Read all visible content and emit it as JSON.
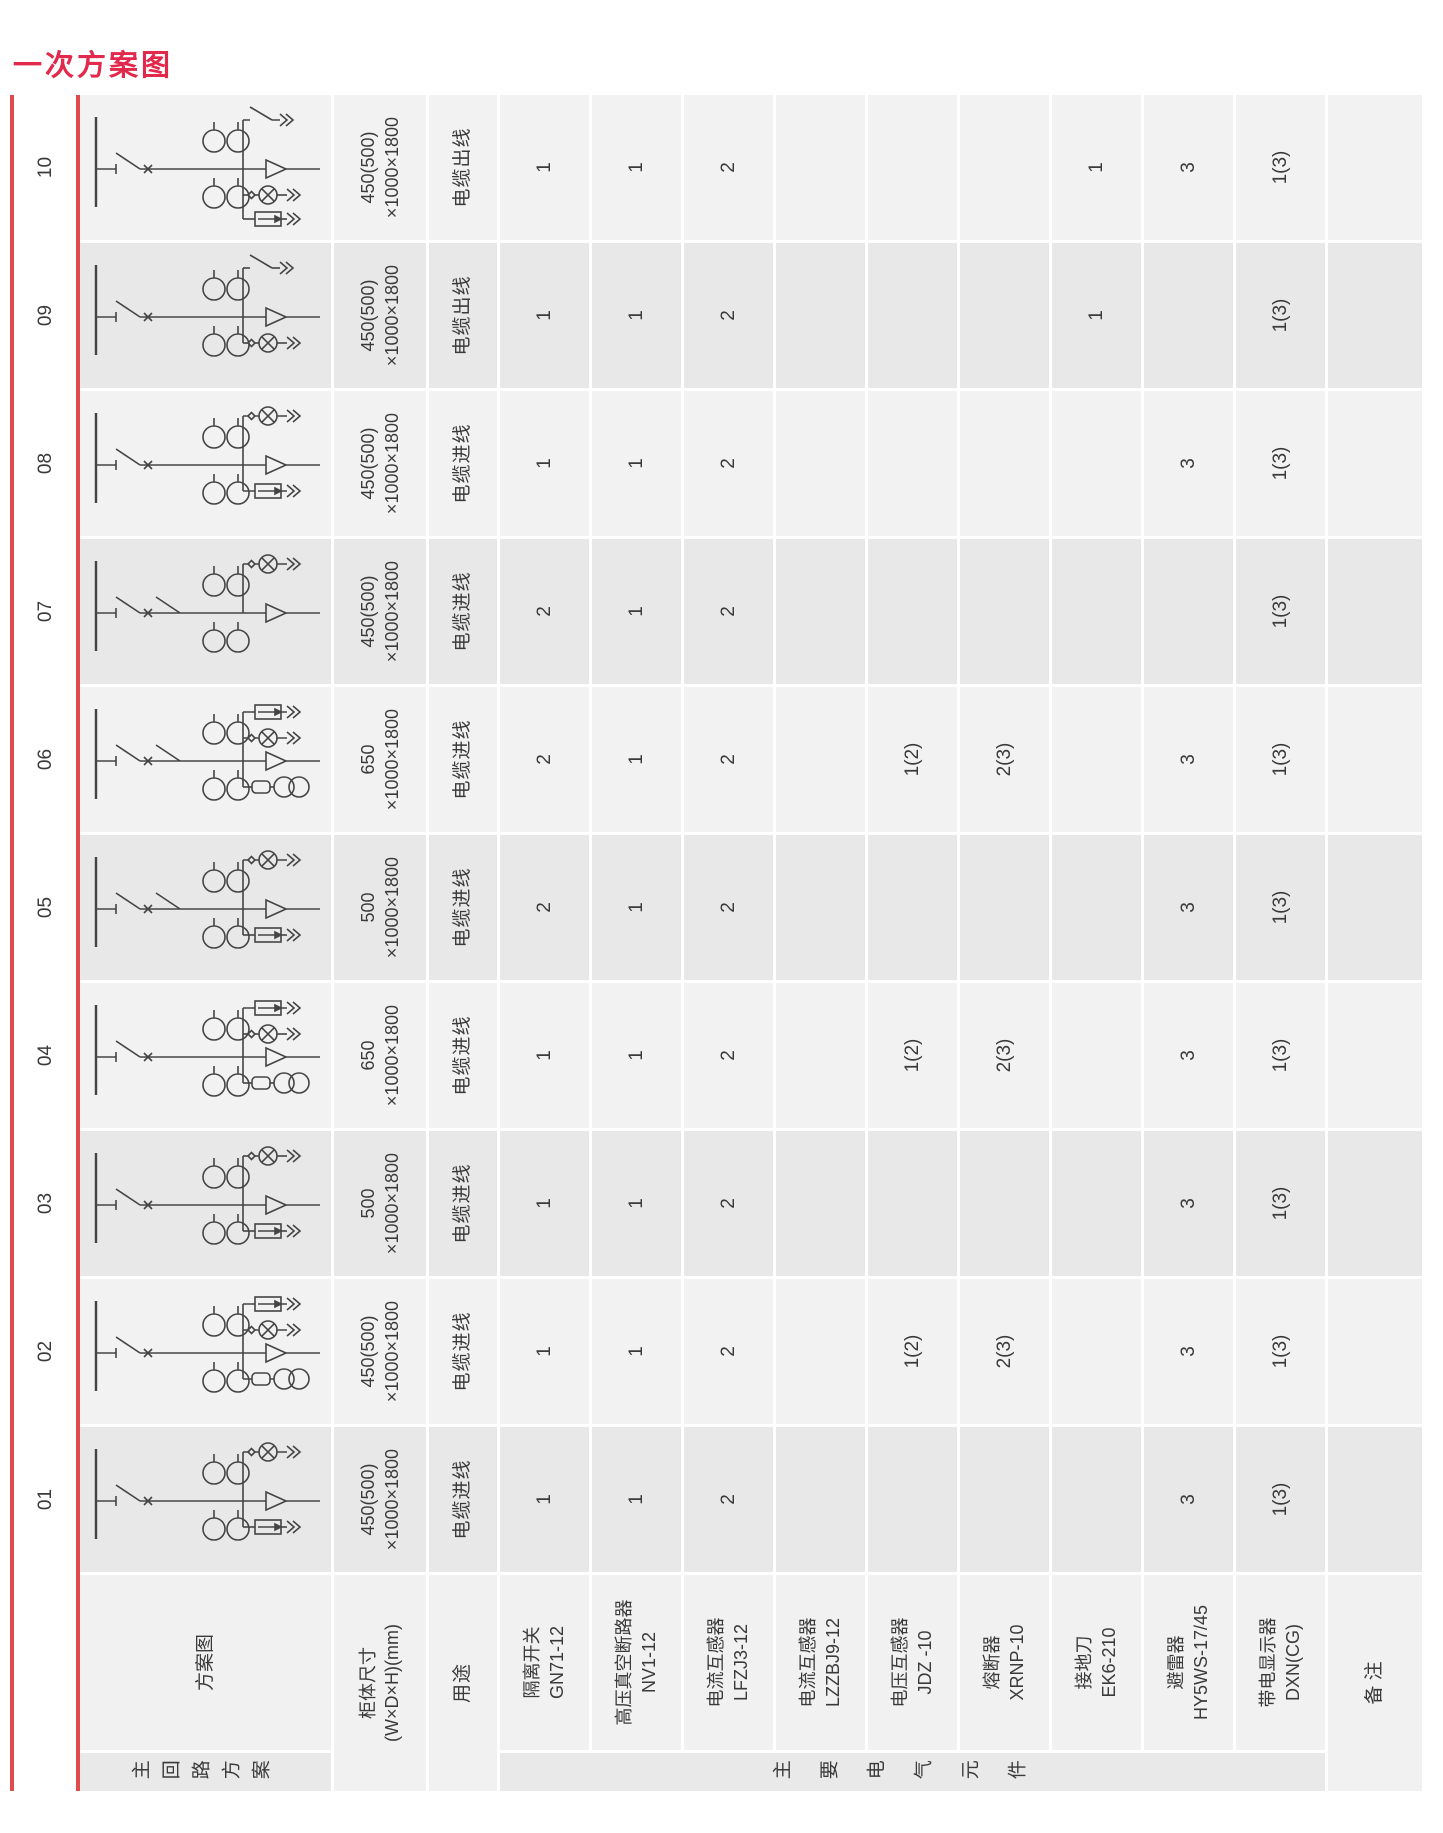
{
  "title": "一次方案图",
  "colors": {
    "accent_title": "#e2294b",
    "red_rule": "#e14b4b",
    "row_light": "#f2f2f2",
    "row_dark": "#e8e8e8",
    "header_bg": "#f1f1f1",
    "group_strip_bg": "#e9e9e9",
    "text": "#3a3a3a",
    "diagram_stroke": "#444444"
  },
  "table": {
    "left": {
      "scheme_group": "主回路方案",
      "diagram": "方案图",
      "size_line1": "柜体尺寸",
      "size_line2": "(W×D×H)(mm)",
      "usage": "用途",
      "components_group": "主要电气元件",
      "components": [
        {
          "name": "隔离开关",
          "model": "GN71-12"
        },
        {
          "name": "高压真空断路器",
          "model": "NV1-12"
        },
        {
          "name": "电流互感器",
          "model": "LFZJ3-12"
        },
        {
          "name": "电流互感器",
          "model": "LZZBJ9-12"
        },
        {
          "name": "电压互感器",
          "model": "JDZ -10"
        },
        {
          "name": "熔断器",
          "model": "XRNP-10"
        },
        {
          "name": "接地刀",
          "model": "EK6-210"
        },
        {
          "name": "避雷器",
          "model": "HY5WS-17/45"
        },
        {
          "name": "带电显示器",
          "model": "DXN(CG)"
        }
      ],
      "remark": "备 注"
    },
    "schemes": [
      {
        "no": "01",
        "size": [
          "450(500)",
          "×1000×1800"
        ],
        "usage": "电缆进线",
        "values": [
          "1",
          "1",
          "2",
          "",
          "",
          "",
          "",
          "3",
          "1(3)"
        ],
        "remark": "",
        "diagram": {
          "disconnectors": 1,
          "branches": [
            "display",
            "cable",
            "arrester"
          ]
        }
      },
      {
        "no": "02",
        "size": [
          "450(500)",
          "×1000×1800"
        ],
        "usage": "电缆进线",
        "values": [
          "1",
          "1",
          "2",
          "",
          "1(2)",
          "2(3)",
          "",
          "3",
          "1(3)"
        ],
        "remark": "",
        "diagram": {
          "disconnectors": 1,
          "branches": [
            "arrester",
            "display",
            "cable",
            "pt"
          ]
        }
      },
      {
        "no": "03",
        "size": [
          "500",
          "×1000×1800"
        ],
        "usage": "电缆进线",
        "values": [
          "1",
          "1",
          "2",
          "",
          "",
          "",
          "",
          "3",
          "1(3)"
        ],
        "remark": "",
        "diagram": {
          "disconnectors": 1,
          "branches": [
            "display",
            "cable",
            "arrester"
          ]
        }
      },
      {
        "no": "04",
        "size": [
          "650",
          "×1000×1800"
        ],
        "usage": "电缆进线",
        "values": [
          "1",
          "1",
          "2",
          "",
          "1(2)",
          "2(3)",
          "",
          "3",
          "1(3)"
        ],
        "remark": "",
        "diagram": {
          "disconnectors": 1,
          "branches": [
            "arrester",
            "display",
            "cable",
            "pt"
          ]
        }
      },
      {
        "no": "05",
        "size": [
          "500",
          "×1000×1800"
        ],
        "usage": "电缆进线",
        "values": [
          "2",
          "1",
          "2",
          "",
          "",
          "",
          "",
          "3",
          "1(3)"
        ],
        "remark": "",
        "diagram": {
          "disconnectors": 2,
          "branches": [
            "display",
            "cable",
            "arrester"
          ]
        }
      },
      {
        "no": "06",
        "size": [
          "650",
          "×1000×1800"
        ],
        "usage": "电缆进线",
        "values": [
          "2",
          "1",
          "2",
          "",
          "1(2)",
          "2(3)",
          "",
          "3",
          "1(3)"
        ],
        "remark": "",
        "diagram": {
          "disconnectors": 2,
          "branches": [
            "arrester",
            "display",
            "cable",
            "pt"
          ]
        }
      },
      {
        "no": "07",
        "size": [
          "450(500)",
          "×1000×1800"
        ],
        "usage": "电缆进线",
        "values": [
          "2",
          "1",
          "2",
          "",
          "",
          "",
          "",
          "",
          "1(3)"
        ],
        "remark": "",
        "diagram": {
          "disconnectors": 2,
          "branches": [
            "display",
            "cable"
          ]
        }
      },
      {
        "no": "08",
        "size": [
          "450(500)",
          "×1000×1800"
        ],
        "usage": "电缆进线",
        "values": [
          "1",
          "1",
          "2",
          "",
          "",
          "",
          "",
          "3",
          "1(3)"
        ],
        "remark": "",
        "diagram": {
          "disconnectors": 1,
          "branches": [
            "display",
            "cable",
            "arrester"
          ]
        }
      },
      {
        "no": "09",
        "size": [
          "450(500)",
          "×1000×1800"
        ],
        "usage": "电缆出线",
        "values": [
          "1",
          "1",
          "2",
          "",
          "",
          "",
          "1",
          "",
          "1(3)"
        ],
        "remark": "",
        "diagram": {
          "disconnectors": 1,
          "branches": [
            "earth",
            "cable",
            "display"
          ]
        }
      },
      {
        "no": "10",
        "size": [
          "450(500)",
          "×1000×1800"
        ],
        "usage": "电缆出线",
        "values": [
          "1",
          "1",
          "2",
          "",
          "",
          "",
          "1",
          "3",
          "1(3)"
        ],
        "remark": "",
        "diagram": {
          "disconnectors": 1,
          "branches": [
            "earth",
            "cable",
            "display",
            "arrester"
          ]
        }
      }
    ]
  }
}
